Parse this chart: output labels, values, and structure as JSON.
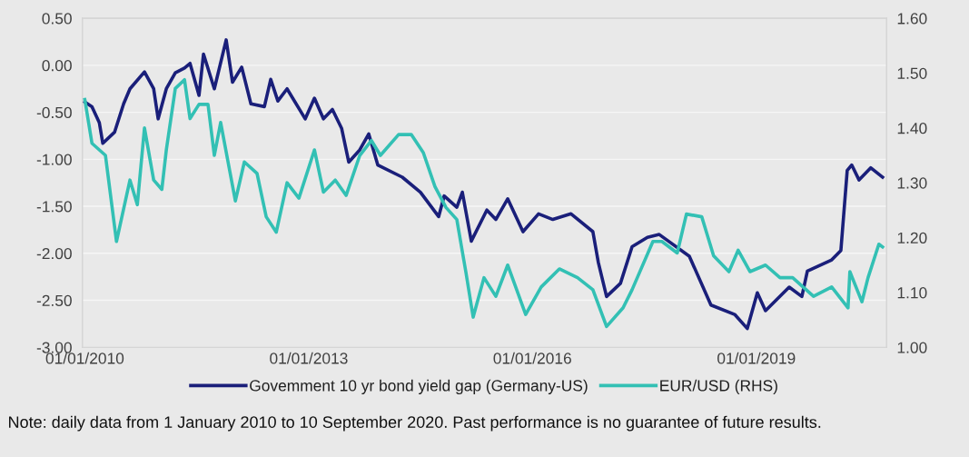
{
  "chart_data": {
    "type": "line",
    "grid": "y",
    "legend": "bottom",
    "line_style": "solid",
    "marker": "none",
    "xlim": [
      "2009-12-20",
      "2020-09-30"
    ],
    "xticks": [
      {
        "value": "2010-01-01",
        "label": "01/01/2010"
      },
      {
        "value": "2013-01-01",
        "label": "01/01/2013"
      },
      {
        "value": "2016-01-01",
        "label": "01/01/2016"
      },
      {
        "value": "2019-01-01",
        "label": "01/01/2019"
      }
    ],
    "ylim": [
      -3.0,
      0.5
    ],
    "yticks": [
      {
        "value": 0.5,
        "label": "0.50"
      },
      {
        "value": 0,
        "label": "0.00"
      },
      {
        "value": -0.5,
        "label": "-0.50"
      },
      {
        "value": -1,
        "label": "-1.00"
      },
      {
        "value": -1.5,
        "label": "-1.50"
      },
      {
        "value": -2,
        "label": "-2.00"
      },
      {
        "value": -2.5,
        "label": "-2.50"
      },
      {
        "value": -3,
        "label": "-3.00"
      }
    ],
    "y2lim": [
      1.0,
      1.6
    ],
    "y2ticks": [
      {
        "value": 1.6,
        "label": "1.60"
      },
      {
        "value": 1.5,
        "label": "1.50"
      },
      {
        "value": 1.4,
        "label": "1.40"
      },
      {
        "value": 1.3,
        "label": "1.30"
      },
      {
        "value": 1.2,
        "label": "1.20"
      },
      {
        "value": 1.1,
        "label": "1.10"
      },
      {
        "value": 1.0,
        "label": "1.00"
      }
    ],
    "series": [
      {
        "name": "Govemment 10 yr bond yield gap (Germany-US)",
        "color": "#1a1f7a",
        "x": [
          "2010-01-01",
          "2010-02-05",
          "2010-03-13",
          "2010-03-30",
          "2010-05-27",
          "2010-07-10",
          "2010-08-10",
          "2010-10-20",
          "2010-12-04",
          "2010-12-26",
          "2011-02-04",
          "2011-03-20",
          "2011-05-04",
          "2011-05-31",
          "2011-07-14",
          "2011-08-05",
          "2011-09-27",
          "2011-11-24",
          "2011-12-25",
          "2012-02-08",
          "2012-03-24",
          "2012-05-29",
          "2012-06-29",
          "2012-08-03",
          "2012-09-17",
          "2012-12-15",
          "2013-01-29",
          "2013-03-14",
          "2013-04-27",
          "2013-06-11",
          "2013-07-16",
          "2013-09-08",
          "2013-10-22",
          "2013-12-05",
          "2014-04-04",
          "2014-07-02",
          "2014-09-29",
          "2014-10-26",
          "2014-12-27",
          "2015-01-23",
          "2015-03-08",
          "2015-05-23",
          "2015-07-06",
          "2015-09-02",
          "2015-11-16",
          "2016-01-31",
          "2016-04-10",
          "2016-07-08",
          "2016-10-23",
          "2016-11-19",
          "2016-12-29",
          "2017-03-07",
          "2017-05-03",
          "2017-07-17",
          "2017-09-13",
          "2018-02-07",
          "2018-05-24",
          "2018-09-17",
          "2018-11-18",
          "2019-01-06",
          "2019-02-15",
          "2019-06-11",
          "2019-08-12",
          "2019-09-08",
          "2020-01-05",
          "2020-02-19",
          "2020-03-21",
          "2020-04-12",
          "2020-05-18",
          "2020-07-14",
          "2020-09-10"
        ],
        "values": [
          -0.39,
          -0.44,
          -0.61,
          -0.83,
          -0.71,
          -0.41,
          -0.25,
          -0.07,
          -0.25,
          -0.57,
          -0.25,
          -0.08,
          -0.03,
          0.02,
          -0.32,
          0.12,
          -0.25,
          0.27,
          -0.18,
          -0.02,
          -0.41,
          -0.44,
          -0.15,
          -0.38,
          -0.25,
          -0.57,
          -0.35,
          -0.57,
          -0.47,
          -0.67,
          -1.03,
          -0.9,
          -0.73,
          -1.06,
          -1.19,
          -1.35,
          -1.61,
          -1.39,
          -1.51,
          -1.35,
          -1.87,
          -1.54,
          -1.64,
          -1.42,
          -1.77,
          -1.58,
          -1.64,
          -1.58,
          -1.77,
          -2.1,
          -2.46,
          -2.32,
          -1.93,
          -1.83,
          -1.8,
          -2.03,
          -2.55,
          -2.65,
          -2.8,
          -2.42,
          -2.61,
          -2.36,
          -2.46,
          -2.19,
          -2.07,
          -1.97,
          -1.12,
          -1.06,
          -1.22,
          -1.09,
          -1.19
        ]
      },
      {
        "name": "EUR/USD (RHS)",
        "color": "#33c0b4",
        "axis": "y2",
        "x": [
          "2010-01-01",
          "2010-02-05",
          "2010-04-12",
          "2010-06-05",
          "2010-08-10",
          "2010-09-15",
          "2010-10-20",
          "2010-12-04",
          "2011-01-13",
          "2011-02-04",
          "2011-03-20",
          "2011-05-04",
          "2011-05-31",
          "2011-07-14",
          "2011-08-27",
          "2011-09-27",
          "2011-10-28",
          "2012-01-08",
          "2012-02-21",
          "2012-04-23",
          "2012-06-07",
          "2012-07-26",
          "2012-09-17",
          "2012-11-14",
          "2013-01-29",
          "2013-03-14",
          "2013-05-11",
          "2013-07-03",
          "2013-09-08",
          "2013-11-04",
          "2013-12-18",
          "2014-03-17",
          "2014-05-18",
          "2014-07-16",
          "2014-09-11",
          "2014-11-04",
          "2014-12-27",
          "2015-02-09",
          "2015-03-17",
          "2015-05-09",
          "2015-07-06",
          "2015-09-02",
          "2015-11-29",
          "2016-02-13",
          "2016-05-12",
          "2016-08-09",
          "2016-10-23",
          "2016-12-29",
          "2017-03-20",
          "2017-05-03",
          "2017-08-13",
          "2017-09-26",
          "2017-12-10",
          "2018-01-24",
          "2018-04-09",
          "2018-06-06",
          "2018-08-20",
          "2018-10-04",
          "2018-12-01",
          "2019-02-15",
          "2019-04-27",
          "2019-06-28",
          "2019-10-08",
          "2020-01-05",
          "2020-03-25",
          "2020-04-03",
          "2020-06-01",
          "2020-07-01",
          "2020-08-23",
          "2020-09-10"
        ],
        "values": [
          1.452,
          1.372,
          1.35,
          1.193,
          1.305,
          1.26,
          1.4,
          1.305,
          1.288,
          1.36,
          1.472,
          1.488,
          1.417,
          1.443,
          1.443,
          1.35,
          1.41,
          1.267,
          1.338,
          1.317,
          1.238,
          1.21,
          1.3,
          1.272,
          1.36,
          1.283,
          1.305,
          1.277,
          1.35,
          1.377,
          1.35,
          1.388,
          1.388,
          1.355,
          1.293,
          1.255,
          1.233,
          1.138,
          1.055,
          1.127,
          1.093,
          1.15,
          1.06,
          1.11,
          1.143,
          1.127,
          1.105,
          1.038,
          1.072,
          1.105,
          1.193,
          1.193,
          1.172,
          1.243,
          1.238,
          1.167,
          1.138,
          1.177,
          1.138,
          1.15,
          1.127,
          1.127,
          1.093,
          1.11,
          1.072,
          1.138,
          1.083,
          1.127,
          1.188,
          1.183
        ]
      }
    ],
    "annotations": [
      "Note: daily data from 1 January 2010 to 10 September 2020. Past performance is no guarantee of future results."
    ]
  }
}
